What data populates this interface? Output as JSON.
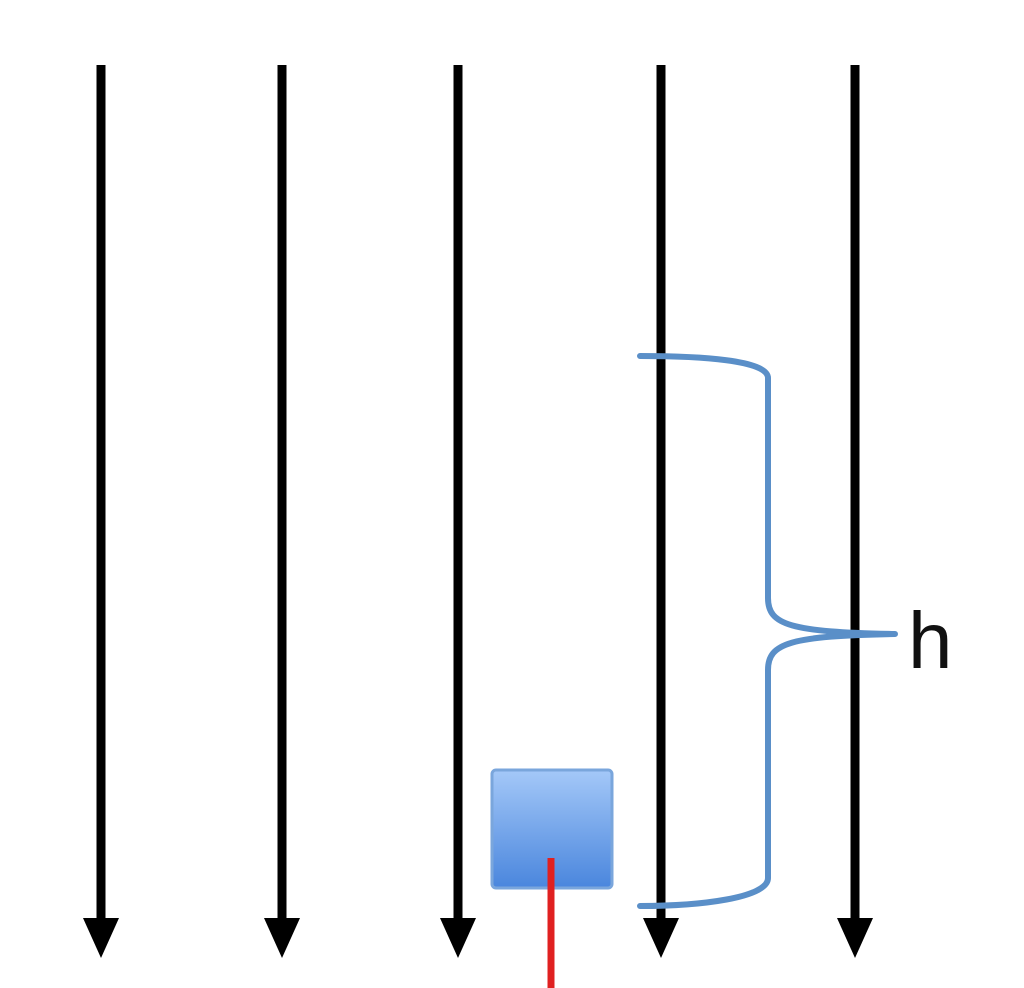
{
  "diagram": {
    "description_label": "h",
    "field_line_count": 5,
    "field_direction": "down",
    "colors": {
      "field_line": "#000000",
      "brace": "#5a8fc8",
      "box_top": "#9cc2f7",
      "box_bottom": "#4a86dd",
      "box_border": "#7aa6dc",
      "red_line": "#e02020",
      "label": "#111111"
    }
  }
}
